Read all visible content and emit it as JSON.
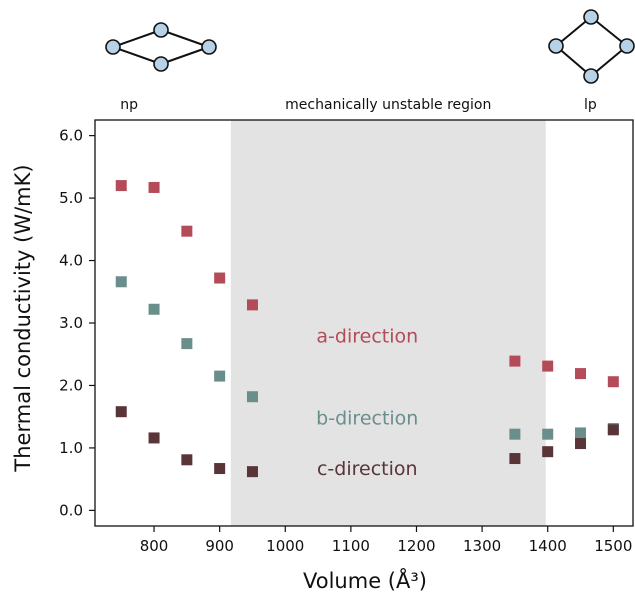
{
  "chart_data": {
    "type": "scatter",
    "xlabel": "Volume (Å³)",
    "ylabel": "Thermal conductivity (W/mK)",
    "xlim": [
      710,
      1530
    ],
    "ylim": [
      -0.25,
      6.25
    ],
    "xticks": [
      "800",
      "900",
      "1000",
      "1100",
      "1200",
      "1300",
      "1400",
      "1500"
    ],
    "xtick_values": [
      800,
      900,
      1000,
      1100,
      1200,
      1300,
      1400,
      1500
    ],
    "yticks": [
      "0.0",
      "1.0",
      "2.0",
      "3.0",
      "4.0",
      "5.0",
      "6.0"
    ],
    "ytick_values": [
      0,
      1,
      2,
      3,
      4,
      5,
      6
    ],
    "grid": false,
    "shaded_region": {
      "x_range": [
        917,
        1397
      ],
      "label": "mechanically unstable region",
      "color": "#e3e3e3"
    },
    "region_labels": [
      {
        "text": "np",
        "x": 762
      },
      {
        "text": "lp",
        "x": 1465
      }
    ],
    "series": [
      {
        "name": "a-direction",
        "color": "#b44b58",
        "x": [
          750,
          800,
          850,
          900,
          950,
          1350,
          1400,
          1450,
          1500
        ],
        "y": [
          5.2,
          5.17,
          4.47,
          3.72,
          3.29,
          2.39,
          2.31,
          2.19,
          2.06
        ],
        "label_pos": {
          "x": 1125,
          "y": 2.8
        }
      },
      {
        "name": "b-direction",
        "color": "#6a8e8c",
        "x": [
          750,
          800,
          850,
          900,
          950,
          1350,
          1400,
          1450,
          1500
        ],
        "y": [
          3.66,
          3.22,
          2.67,
          2.15,
          1.82,
          1.22,
          1.22,
          1.24,
          1.31
        ],
        "label_pos": {
          "x": 1125,
          "y": 1.49
        }
      },
      {
        "name": "c-direction",
        "color": "#5a3538",
        "x": [
          750,
          800,
          850,
          900,
          950,
          1350,
          1400,
          1450,
          1500
        ],
        "y": [
          1.58,
          1.16,
          0.81,
          0.67,
          0.62,
          0.83,
          0.94,
          1.07,
          1.29
        ],
        "label_pos": {
          "x": 1125,
          "y": 0.68
        }
      }
    ]
  },
  "diagrams": {
    "node_color": "#b7d1e6",
    "edge_color": "#111111",
    "left_icon": "narrow-pore-framework",
    "right_icon": "large-pore-framework"
  }
}
